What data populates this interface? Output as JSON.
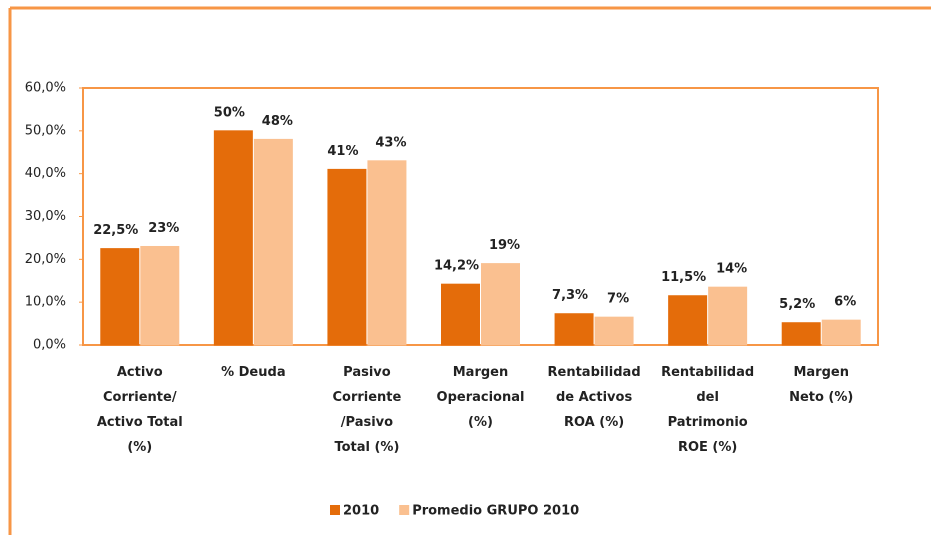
{
  "chart_data": {
    "type": "bar",
    "categories": [
      [
        "Activo",
        "Corriente/",
        "Activo Total",
        "(%)"
      ],
      [
        "% Deuda"
      ],
      [
        "Pasivo",
        "Corriente",
        "/Pasivo",
        "Total (%)"
      ],
      [
        "Margen",
        "Operacional",
        "(%)"
      ],
      [
        "Rentabilidad",
        "de Activos",
        "ROA (%)"
      ],
      [
        "Rentabilidad",
        "del",
        "Patrimonio",
        "ROE  (%)"
      ],
      [
        "Margen",
        "Neto  (%)"
      ]
    ],
    "series": [
      {
        "name": "2010",
        "color": "#e46c0a",
        "values": [
          22.5,
          50,
          41,
          14.2,
          7.3,
          11.5,
          5.2
        ],
        "value_labels": [
          "22,5%",
          "50%",
          "41%",
          "14,2%",
          "7,3%",
          "11,5%",
          "5,2%"
        ]
      },
      {
        "name": "Promedio GRUPO 2010",
        "color": "#fac090",
        "values": [
          23,
          48,
          43,
          19,
          6.5,
          13.5,
          5.8
        ],
        "value_labels": [
          "23%",
          "48%",
          "43%",
          "19%",
          "7%",
          "14%",
          "6%"
        ]
      }
    ],
    "ylim": [
      0,
      60
    ],
    "yticks": [
      {
        "value": 0,
        "label": "0,0%"
      },
      {
        "value": 10,
        "label": "10,0%"
      },
      {
        "value": 20,
        "label": "20,0%"
      },
      {
        "value": 30,
        "label": "30,0%"
      },
      {
        "value": 40,
        "label": "40,0%"
      },
      {
        "value": 50,
        "label": "50,0%"
      },
      {
        "value": 60,
        "label": "60,0%"
      }
    ],
    "legend": "bottom"
  }
}
